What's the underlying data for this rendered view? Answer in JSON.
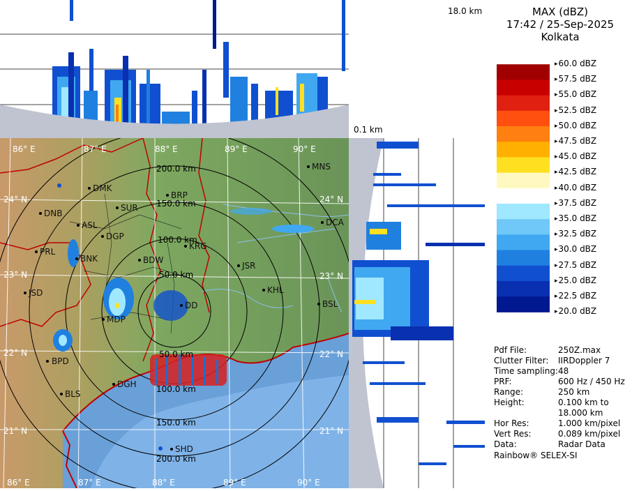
{
  "product": {
    "title": "MAX (dBZ)",
    "timestamp": "17:42 / 25-Sep-2025",
    "station": "Kolkata"
  },
  "height_labels": {
    "top": "18.0 km",
    "bottom": "0.1 km"
  },
  "legend": {
    "labels": [
      "60.0 dBZ",
      "57.5 dBZ",
      "55.0 dBZ",
      "52.5 dBZ",
      "50.0 dBZ",
      "47.5 dBZ",
      "45.0 dBZ",
      "42.5 dBZ",
      "40.0 dBZ",
      "37.5 dBZ",
      "35.0 dBZ",
      "32.5 dBZ",
      "30.0 dBZ",
      "27.5 dBZ",
      "25.0 dBZ",
      "22.5 dBZ",
      "20.0 dBZ"
    ],
    "colors": [
      "#ffffff",
      "#a00000",
      "#c80000",
      "#e02010",
      "#ff5010",
      "#ff8010",
      "#ffb000",
      "#ffe020",
      "#fff8c0",
      "#ffffff",
      "#a0e8ff",
      "#70c8f8",
      "#40a8f0",
      "#2080e0",
      "#1050d0",
      "#0830b0",
      "#001890"
    ]
  },
  "metadata": [
    {
      "key": "Pdf File:",
      "value": "250Z.max"
    },
    {
      "key": "Clutter Filter:",
      "value": "IIRDoppler 7"
    },
    {
      "key": "Time sampling:",
      "value": "48"
    },
    {
      "key": "PRF:",
      "value": "600 Hz / 450 Hz"
    },
    {
      "key": "Range:",
      "value": "250 km"
    },
    {
      "key": "Height:",
      "value": "0.100 km to"
    },
    {
      "key": "",
      "value": "18.000 km"
    },
    {
      "key": "Hor Res:",
      "value": "1.000 km/pixel"
    },
    {
      "key": "Vert Res:",
      "value": "0.089 km/pixel"
    },
    {
      "key": "Data:",
      "value": "Radar Data"
    }
  ],
  "credit": "Rainbow® SELEX-SI",
  "map": {
    "lon_labels": [
      "86° E",
      "87° E",
      "88° E",
      "89° E",
      "90° E"
    ],
    "lat_labels": [
      "24° N",
      "23° N",
      "22° N",
      "21° N"
    ],
    "ring_labels": [
      "50.0 km",
      "100.0 km",
      "150.0 km",
      "200.0 km"
    ],
    "cities": [
      "MNS",
      "DMK",
      "BRP",
      "DNB",
      "SUR",
      "DCA",
      "ASL",
      "DGP",
      "KRG",
      "PRL",
      "BNK",
      "BDW",
      "JSR",
      "JSD",
      "KHL",
      "BSL",
      "MDP",
      "DD",
      "BPD",
      "DGH",
      "BLS",
      "SHD"
    ]
  }
}
